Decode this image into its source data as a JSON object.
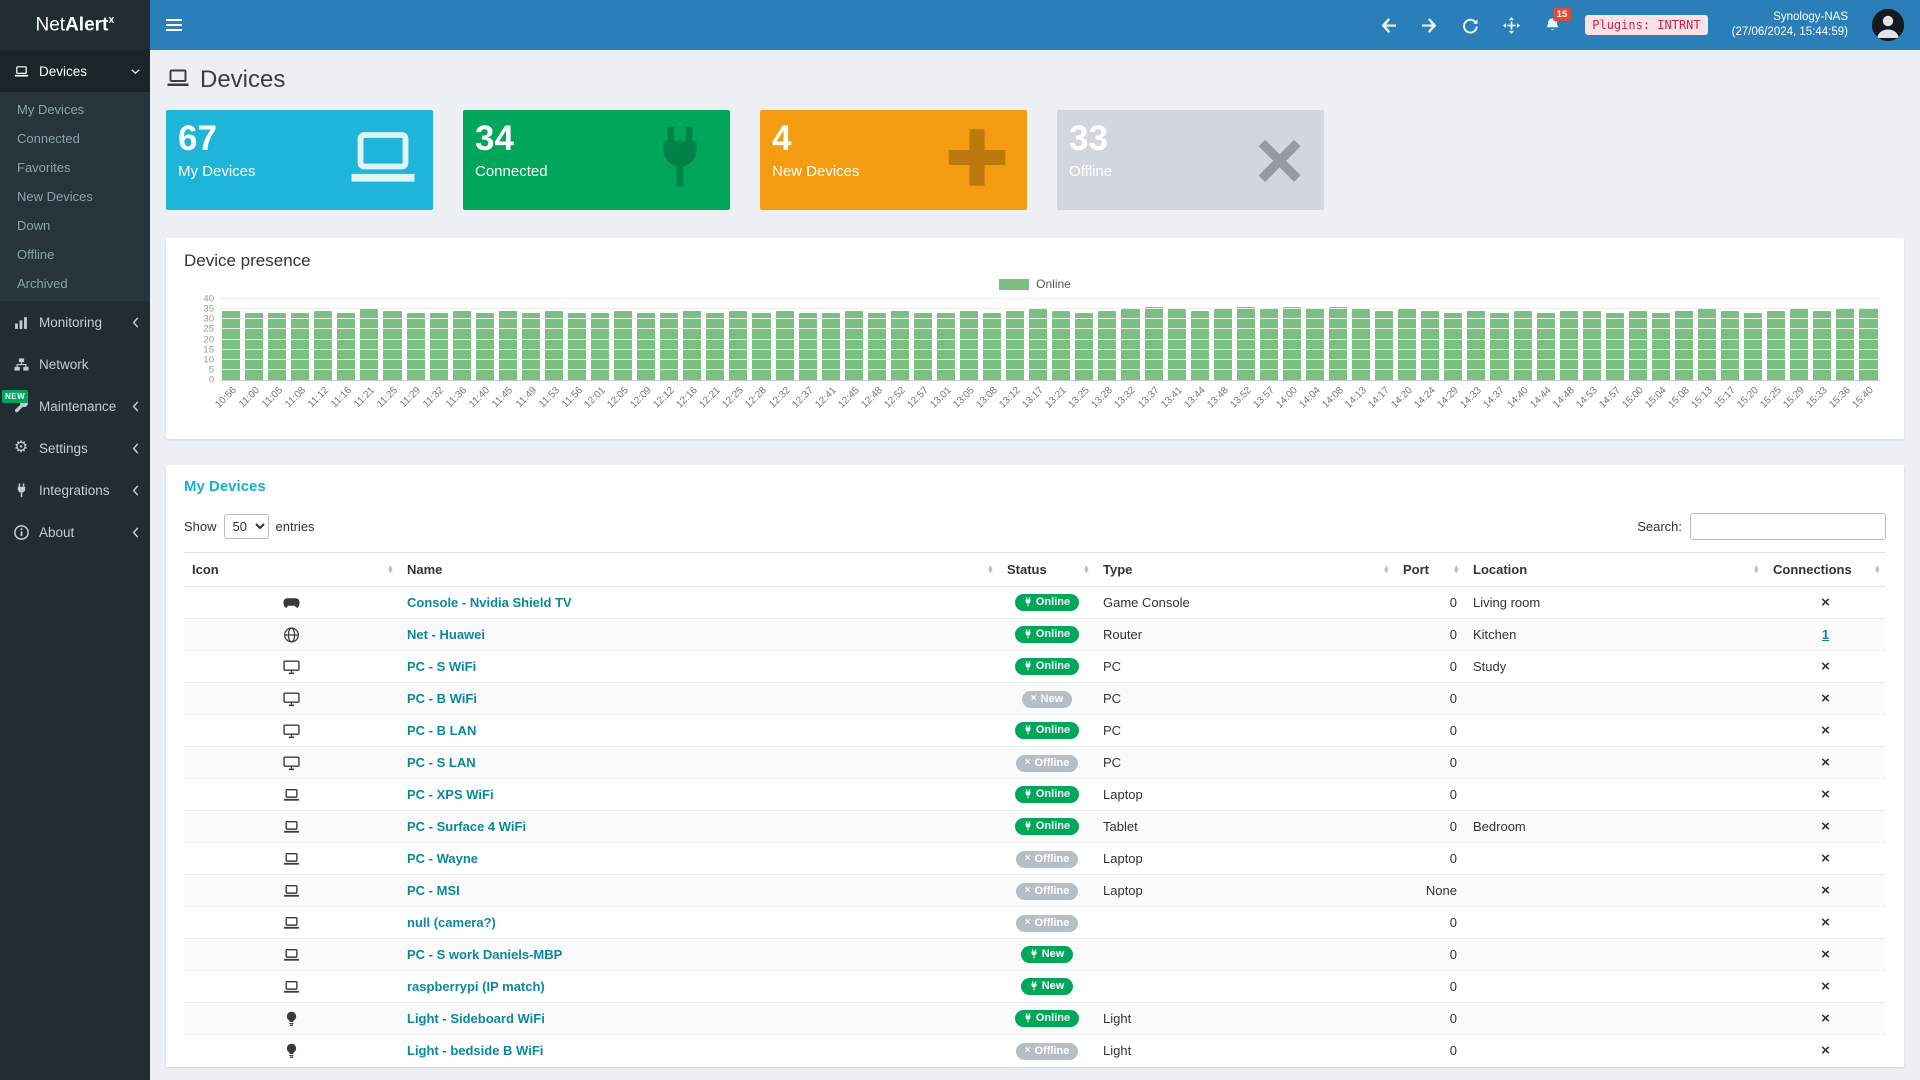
{
  "colors": {
    "navbar": "#2b7fb9",
    "sidebar": "#222d32",
    "sidebar_active": "#1b2529",
    "green": "#00a65a",
    "heading": "#17b1c7",
    "link": "#0e879c",
    "bar": "#7ac080",
    "badge_gray": "#b7bec6",
    "notif": "#dd4b39"
  },
  "navbar": {
    "brand_prefix": "Net",
    "brand_mid": "Alert",
    "brand_sup": "x",
    "notification_count": "15",
    "plugins_badge": "Plugins: INTRNT",
    "host": "Synology-NAS",
    "timestamp": "(27/06/2024, 15:44:59)"
  },
  "sidebar": {
    "new_badge": "NEW",
    "items": [
      {
        "label": "Devices",
        "icon": "laptop",
        "active": true,
        "chevron": "down",
        "children": [
          "My Devices",
          "Connected",
          "Favorites",
          "New Devices",
          "Down",
          "Offline",
          "Archived"
        ]
      },
      {
        "label": "Monitoring",
        "icon": "chart",
        "chevron": "left"
      },
      {
        "label": "Network",
        "icon": "network"
      },
      {
        "label": "Maintenance",
        "icon": "wrench",
        "chevron": "left"
      },
      {
        "label": "Settings",
        "icon": "gear",
        "chevron": "left"
      },
      {
        "label": "Integrations",
        "icon": "plug",
        "chevron": "left"
      },
      {
        "label": "About",
        "icon": "info",
        "chevron": "left"
      }
    ]
  },
  "page": {
    "title": "Devices"
  },
  "stats": [
    {
      "value": "67",
      "label": "My Devices",
      "color": "#1fb5d8",
      "icon": "laptop",
      "icon_color": "rgba(255,255,255,0.85)"
    },
    {
      "value": "34",
      "label": "Connected",
      "color": "#00a65a",
      "icon": "plug",
      "icon_color": "rgba(0,0,0,0.22)"
    },
    {
      "value": "4",
      "label": "New Devices",
      "color": "#f39c12",
      "icon": "plus",
      "icon_color": "rgba(0,0,0,0.22)"
    },
    {
      "value": "33",
      "label": "Offline",
      "color": "#d2d6de",
      "icon": "x",
      "icon_color": "rgba(0,0,0,0.28)"
    }
  ],
  "chart_data": {
    "type": "bar",
    "title": "Device presence",
    "legend": [
      {
        "label": "Online",
        "color": "#7ac080"
      }
    ],
    "ylim": [
      0,
      40
    ],
    "yticks": [
      0,
      5,
      10,
      15,
      20,
      25,
      30,
      35,
      40
    ],
    "categories": [
      "10:56",
      "11:00",
      "11:05",
      "11:08",
      "11:12",
      "11:16",
      "11:21",
      "11:25",
      "11:29",
      "11:32",
      "11:36",
      "11:40",
      "11:45",
      "11:49",
      "11:53",
      "11:56",
      "12:01",
      "12:05",
      "12:09",
      "12:12",
      "12:16",
      "12:21",
      "12:25",
      "12:28",
      "12:32",
      "12:37",
      "12:41",
      "12:45",
      "12:48",
      "12:52",
      "12:57",
      "13:01",
      "13:05",
      "13:08",
      "13:12",
      "13:17",
      "13:21",
      "13:25",
      "13:28",
      "13:32",
      "13:37",
      "13:41",
      "13:44",
      "13:48",
      "13:52",
      "13:57",
      "14:00",
      "14:04",
      "14:08",
      "14:13",
      "14:17",
      "14:20",
      "14:24",
      "14:29",
      "14:33",
      "14:37",
      "14:40",
      "14:44",
      "14:48",
      "14:53",
      "14:57",
      "15:00",
      "15:04",
      "15:08",
      "15:13",
      "15:17",
      "15:20",
      "15:25",
      "15:29",
      "15:33",
      "15:36",
      "15:40"
    ],
    "values": [
      34,
      33,
      33,
      33,
      34,
      33,
      35,
      34,
      33,
      33,
      34,
      33,
      34,
      33,
      34,
      33,
      33,
      34,
      33,
      33,
      34,
      33,
      34,
      33,
      34,
      33,
      33,
      34,
      33,
      34,
      33,
      33,
      34,
      33,
      34,
      35,
      34,
      33,
      34,
      35,
      36,
      35,
      34,
      35,
      36,
      35,
      36,
      35,
      36,
      35,
      34,
      35,
      34,
      33,
      34,
      33,
      34,
      33,
      34,
      34,
      33,
      34,
      33,
      34,
      35,
      34,
      33,
      34,
      35,
      34,
      35,
      35
    ]
  },
  "table": {
    "title": "My Devices",
    "show_label": "Show",
    "entries_label": "entries",
    "page_length": "50",
    "search_label": "Search:",
    "search_value": "",
    "columns": [
      "Icon",
      "Name",
      "Status",
      "Type",
      "Port",
      "Location",
      "Connections"
    ],
    "rows": [
      {
        "icon": "gamepad",
        "name": "Console - Nvidia Shield TV",
        "status": "Online",
        "status_style": "green",
        "status_icon": "plug",
        "type": "Game Console",
        "port": "0",
        "location": "Living room",
        "connections": "x"
      },
      {
        "icon": "globe",
        "name": "Net - Huawei",
        "status": "Online",
        "status_style": "green",
        "status_icon": "plug",
        "type": "Router",
        "port": "0",
        "location": "Kitchen",
        "connections": "1"
      },
      {
        "icon": "desktop",
        "name": "PC - S WiFi",
        "status": "Online",
        "status_style": "green",
        "status_icon": "plug",
        "type": "PC",
        "port": "0",
        "location": "Study",
        "connections": "x"
      },
      {
        "icon": "desktop",
        "name": "PC - B WiFi",
        "status": "New",
        "status_style": "gray",
        "status_icon": "x",
        "type": "PC",
        "port": "0",
        "location": "",
        "connections": "x"
      },
      {
        "icon": "desktop",
        "name": "PC - B LAN",
        "status": "Online",
        "status_style": "green",
        "status_icon": "plug",
        "type": "PC",
        "port": "0",
        "location": "",
        "connections": "x"
      },
      {
        "icon": "desktop",
        "name": "PC - S LAN",
        "status": "Offline",
        "status_style": "gray",
        "status_icon": "x",
        "type": "PC",
        "port": "0",
        "location": "",
        "connections": "x"
      },
      {
        "icon": "laptop",
        "name": "PC - XPS WiFi",
        "status": "Online",
        "status_style": "green",
        "status_icon": "plug",
        "type": "Laptop",
        "port": "0",
        "location": "",
        "connections": "x"
      },
      {
        "icon": "laptop",
        "name": "PC - Surface 4 WiFi",
        "status": "Online",
        "status_style": "green",
        "status_icon": "plug",
        "type": "Tablet",
        "port": "0",
        "location": "Bedroom",
        "connections": "x"
      },
      {
        "icon": "laptop",
        "name": "PC - Wayne",
        "status": "Offline",
        "status_style": "gray",
        "status_icon": "x",
        "type": "Laptop",
        "port": "0",
        "location": "",
        "connections": "x"
      },
      {
        "icon": "laptop",
        "name": "PC - MSI",
        "status": "Offline",
        "status_style": "gray",
        "status_icon": "x",
        "type": "Laptop",
        "port": "None",
        "location": "",
        "connections": "x"
      },
      {
        "icon": "laptop",
        "name": "null (camera?)",
        "status": "Offline",
        "status_style": "gray",
        "status_icon": "x",
        "type": "",
        "port": "0",
        "location": "",
        "connections": "x"
      },
      {
        "icon": "laptop",
        "name": "PC - S work Daniels-MBP",
        "status": "New",
        "status_style": "green",
        "status_icon": "plug",
        "type": "",
        "port": "0",
        "location": "",
        "connections": "x"
      },
      {
        "icon": "laptop",
        "name": "raspberrypi (IP match)",
        "status": "New",
        "status_style": "green",
        "status_icon": "plug",
        "type": "",
        "port": "0",
        "location": "",
        "connections": "x"
      },
      {
        "icon": "lightbulb",
        "name": "Light - Sideboard WiFi",
        "status": "Online",
        "status_style": "green",
        "status_icon": "plug",
        "type": "Light",
        "port": "0",
        "location": "",
        "connections": "x"
      },
      {
        "icon": "lightbulb",
        "name": "Light - bedside B WiFi",
        "status": "Offline",
        "status_style": "gray",
        "status_icon": "x",
        "type": "Light",
        "port": "0",
        "location": "",
        "connections": "x"
      }
    ]
  }
}
